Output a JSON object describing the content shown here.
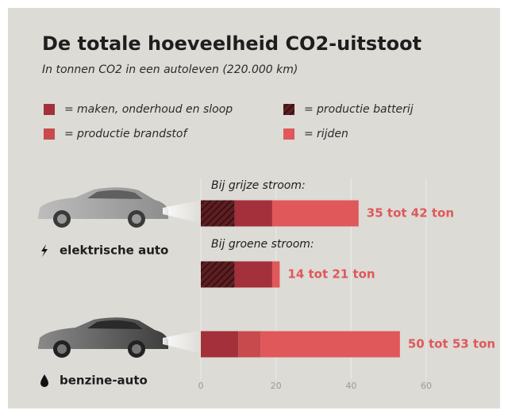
{
  "chart_data": {
    "type": "bar",
    "orientation": "horizontal",
    "stacked": true,
    "title": "De totale hoeveelheid CO2-uitstoot",
    "subtitle": "In tonnen CO2 in een autoleven (220.000 km)",
    "legend_separator": "=",
    "categories": [
      "Bij grijze stroom:",
      "Bij groene stroom:",
      null
    ],
    "groups": [
      {
        "label": "elektrische auto",
        "icon": "bolt"
      },
      {
        "label": "benzine-auto",
        "icon": "drop"
      }
    ],
    "series": [
      {
        "name": "productie batterij",
        "color": "#5e1e22",
        "pattern": "hatch",
        "values": [
          9,
          9,
          null
        ]
      },
      {
        "name": "maken, onderhoud en sloop",
        "color": "#a3303a",
        "values": [
          10,
          10,
          10
        ]
      },
      {
        "name": "productie brandstof",
        "color": "#c84a4d",
        "values": [
          null,
          null,
          6
        ]
      },
      {
        "name": "rijden",
        "color": "#e0585a",
        "values": [
          23,
          2,
          37
        ]
      }
    ],
    "total_labels": [
      "35 tot 42 ton",
      "14 tot 21 ton",
      "50 tot 53 ton"
    ],
    "xlim": [
      0,
      60
    ],
    "xticks": [
      0,
      20,
      40,
      60
    ],
    "grid": true
  }
}
